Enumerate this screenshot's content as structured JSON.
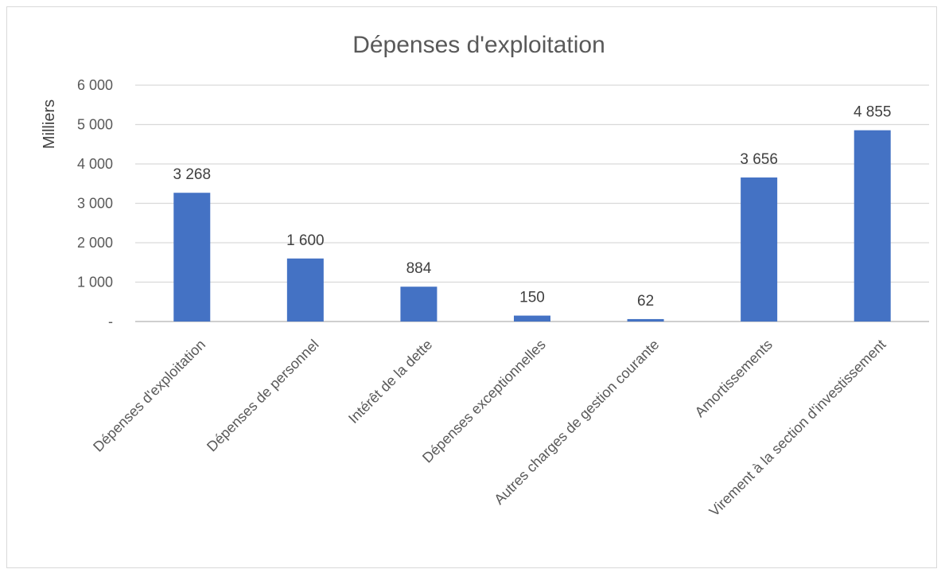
{
  "chart_data": {
    "type": "bar",
    "title": "Dépenses d'exploitation",
    "ylabel": "Milliers",
    "xlabel": "",
    "categories": [
      "Dépenses d'exploitation",
      "Dépenses de personnel",
      "Intérêt de la dette",
      "Dépenses exceptionnelles",
      "Autres charges de gestion courante",
      "Amortissements",
      "Virement à la section d'investissement"
    ],
    "values": [
      3268,
      1600,
      884,
      150,
      62,
      3656,
      4855
    ],
    "data_labels": [
      "3 268",
      "1 600",
      "884",
      "150",
      "62",
      "3 656",
      "4 855"
    ],
    "y_ticks": [
      "-",
      "1 000",
      "2 000",
      "3 000",
      "4 000",
      "5 000",
      "6 000"
    ],
    "y_tick_values": [
      0,
      1000,
      2000,
      3000,
      4000,
      5000,
      6000
    ],
    "ylim": [
      0,
      6000
    ],
    "grid": true,
    "legend": "none",
    "bar_color": "#4472c4"
  }
}
